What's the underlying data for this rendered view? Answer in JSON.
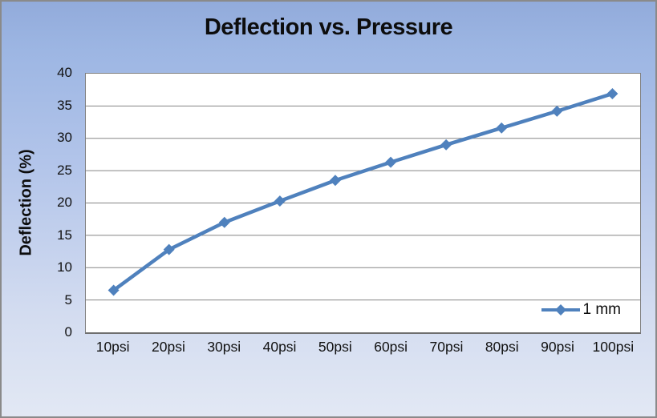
{
  "chart": {
    "title": "Deflection vs. Pressure",
    "y_axis_title": "Deflection (%)",
    "legend_label": "1 mm",
    "colors": {
      "series_line": "#4F81BD",
      "gridline": "#858585",
      "plot_background": "#ffffff",
      "background_top": "#92abdb",
      "background_bottom": "#e2e8f4",
      "border": "#8a8a8a",
      "text": "#0d0d0d"
    }
  },
  "chart_data": {
    "type": "line",
    "title": "Deflection vs. Pressure",
    "xlabel": "",
    "ylabel": "Deflection (%)",
    "categories": [
      "10psi",
      "20psi",
      "30psi",
      "40psi",
      "50psi",
      "60psi",
      "70psi",
      "80psi",
      "90psi",
      "100psi"
    ],
    "series": [
      {
        "name": "1 mm",
        "values": [
          6.5,
          12.8,
          17.0,
          20.3,
          23.5,
          26.3,
          29.0,
          31.6,
          34.2,
          36.9
        ]
      }
    ],
    "ylim": [
      0,
      40
    ],
    "y_tick_step": 5,
    "y_ticks": [
      "0",
      "5",
      "10",
      "15",
      "20",
      "25",
      "30",
      "35",
      "40"
    ],
    "grid": true,
    "marker": "diamond",
    "line_color": "#4F81BD",
    "legend_position": "inside-bottom-right"
  }
}
